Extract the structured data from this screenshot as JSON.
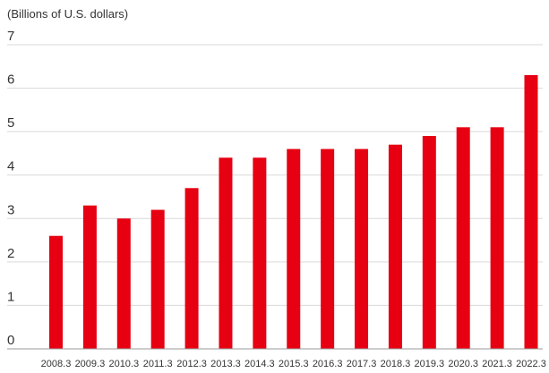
{
  "chart_data": {
    "type": "bar",
    "title": "",
    "unit_label": "(Billions of U.S. dollars)",
    "xlabel": "",
    "ylabel": "",
    "ylim": [
      0,
      7
    ],
    "yticks": [
      "0",
      "1",
      "2",
      "3",
      "4",
      "5",
      "6",
      "7"
    ],
    "grid": true,
    "categories": [
      "2008.3",
      "2009.3",
      "2010.3",
      "2011.3",
      "2012.3",
      "2013.3",
      "2014.3",
      "2015.3",
      "2016.3",
      "2017.3",
      "2018.3",
      "2019.3",
      "2020.3",
      "2021.3",
      "2022.3"
    ],
    "values": [
      2.6,
      3.3,
      3.0,
      3.2,
      3.7,
      4.4,
      4.4,
      4.6,
      4.6,
      4.6,
      4.7,
      4.9,
      5.1,
      5.1,
      6.3
    ],
    "bar_color": "#e60012"
  }
}
